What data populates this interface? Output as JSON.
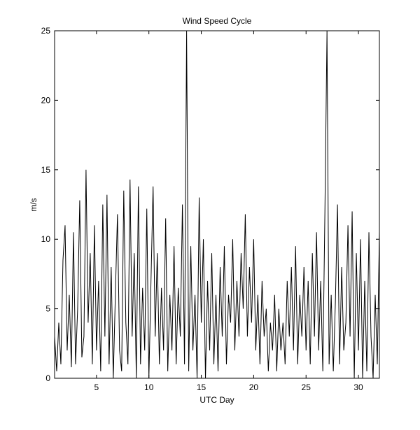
{
  "chart_data": {
    "type": "line",
    "title": "Wind Speed Cycle",
    "x_label": "UTC Day",
    "y_label": "m/s",
    "x": [
      1,
      1.2,
      1.4,
      1.6,
      1.8,
      2,
      2.2,
      2.4,
      2.6,
      2.8,
      3,
      3.2,
      3.4,
      3.6,
      3.8,
      4,
      4.2,
      4.4,
      4.6,
      4.8,
      5,
      5.2,
      5.4,
      5.6,
      5.8,
      6,
      6.2,
      6.4,
      6.6,
      6.8,
      7,
      7.2,
      7.4,
      7.6,
      7.8,
      8,
      8.2,
      8.4,
      8.6,
      8.8,
      9,
      9.2,
      9.4,
      9.6,
      9.8,
      10,
      10.2,
      10.4,
      10.6,
      10.8,
      11,
      11.2,
      11.4,
      11.6,
      11.8,
      12,
      12.2,
      12.4,
      12.6,
      12.8,
      13,
      13.2,
      13.4,
      13.6,
      13.8,
      14,
      14.2,
      14.4,
      14.6,
      14.8,
      15,
      15.2,
      15.4,
      15.6,
      15.8,
      16,
      16.2,
      16.4,
      16.6,
      16.8,
      17,
      17.2,
      17.4,
      17.6,
      17.8,
      18,
      18.2,
      18.4,
      18.6,
      18.8,
      19,
      19.2,
      19.4,
      19.6,
      19.8,
      20,
      20.2,
      20.4,
      20.6,
      20.8,
      21,
      21.2,
      21.4,
      21.6,
      21.8,
      22,
      22.2,
      22.4,
      22.6,
      22.8,
      23,
      23.2,
      23.4,
      23.6,
      23.8,
      24,
      24.2,
      24.4,
      24.6,
      24.8,
      25,
      25.2,
      25.4,
      25.6,
      25.8,
      26,
      26.2,
      26.4,
      26.6,
      26.8,
      27,
      27.2,
      27.4,
      27.6,
      27.8,
      28,
      28.2,
      28.4,
      28.6,
      28.8,
      29,
      29.2,
      29.4,
      29.6,
      29.8,
      30,
      30.2,
      30.4,
      30.6,
      30.8,
      31,
      31.2,
      31.4,
      31.6,
      31.8,
      32
    ],
    "series": [
      {
        "color": "#000000",
        "values": [
          3,
          0.5,
          4,
          1,
          8.5,
          11,
          2,
          6,
          0.8,
          10.5,
          1,
          5,
          12.8,
          1.5,
          3,
          15,
          4,
          9,
          1,
          11,
          2,
          7,
          0.5,
          12.5,
          3,
          13.2,
          1,
          8,
          0,
          6,
          11.8,
          2,
          0.5,
          13.5,
          4,
          1,
          14.3,
          3,
          9,
          0,
          13.8,
          1,
          6.5,
          2,
          12.2,
          0,
          7,
          13.8,
          3,
          9,
          1,
          6.5,
          2,
          11.5,
          0.5,
          6,
          2,
          9.5,
          1,
          6.5,
          3,
          12.5,
          1,
          25,
          0.5,
          9.5,
          2,
          6,
          0,
          13,
          4,
          10,
          0,
          7,
          2,
          9,
          1,
          6,
          0.5,
          8,
          3,
          9.5,
          1,
          6,
          4,
          10,
          2,
          7,
          3,
          9,
          5,
          11.8,
          3,
          8,
          4,
          10,
          2,
          6,
          1,
          7,
          3,
          5,
          0.5,
          4,
          2,
          6,
          0.5,
          5,
          2,
          4,
          1,
          7,
          3,
          8,
          2,
          9.5,
          1,
          6,
          3,
          8,
          2,
          7,
          1,
          9,
          3,
          10.5,
          2,
          7,
          0.5,
          12,
          25,
          1,
          6,
          0.5,
          5.5,
          12.5,
          1,
          8,
          2,
          4,
          11,
          3,
          12,
          0,
          9,
          2,
          10,
          0,
          7,
          0.5,
          10.5,
          3,
          0,
          6,
          1,
          10.5
        ]
      }
    ],
    "xlim": [
      1,
      32
    ],
    "ylim": [
      0,
      25
    ],
    "xticks": [
      5,
      10,
      15,
      20,
      25,
      30
    ],
    "yticks": [
      0,
      5,
      10,
      15,
      20,
      25
    ]
  }
}
